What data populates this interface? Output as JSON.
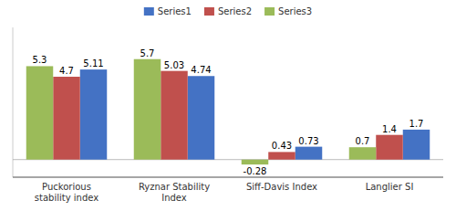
{
  "chart_data": {
    "type": "bar",
    "categories": [
      "Puckorious\nstability index",
      "Ryznar Stability\nIndex",
      "Siff-Davis Index",
      "Langlier SI"
    ],
    "series": [
      {
        "name": "Series1",
        "color": "#4472C4",
        "values": [
          5.11,
          4.74,
          0.73,
          1.7
        ]
      },
      {
        "name": "Series2",
        "color": "#C0504D",
        "values": [
          4.7,
          5.03,
          0.43,
          1.4
        ]
      },
      {
        "name": "Series3",
        "color": "#9BBB59",
        "values": [
          5.3,
          5.7,
          -0.28,
          0.7
        ]
      }
    ],
    "ylim": [
      -1.0,
      7.5
    ],
    "grid": false,
    "legend": "top",
    "data_labels": true,
    "tick_labels": "x"
  }
}
